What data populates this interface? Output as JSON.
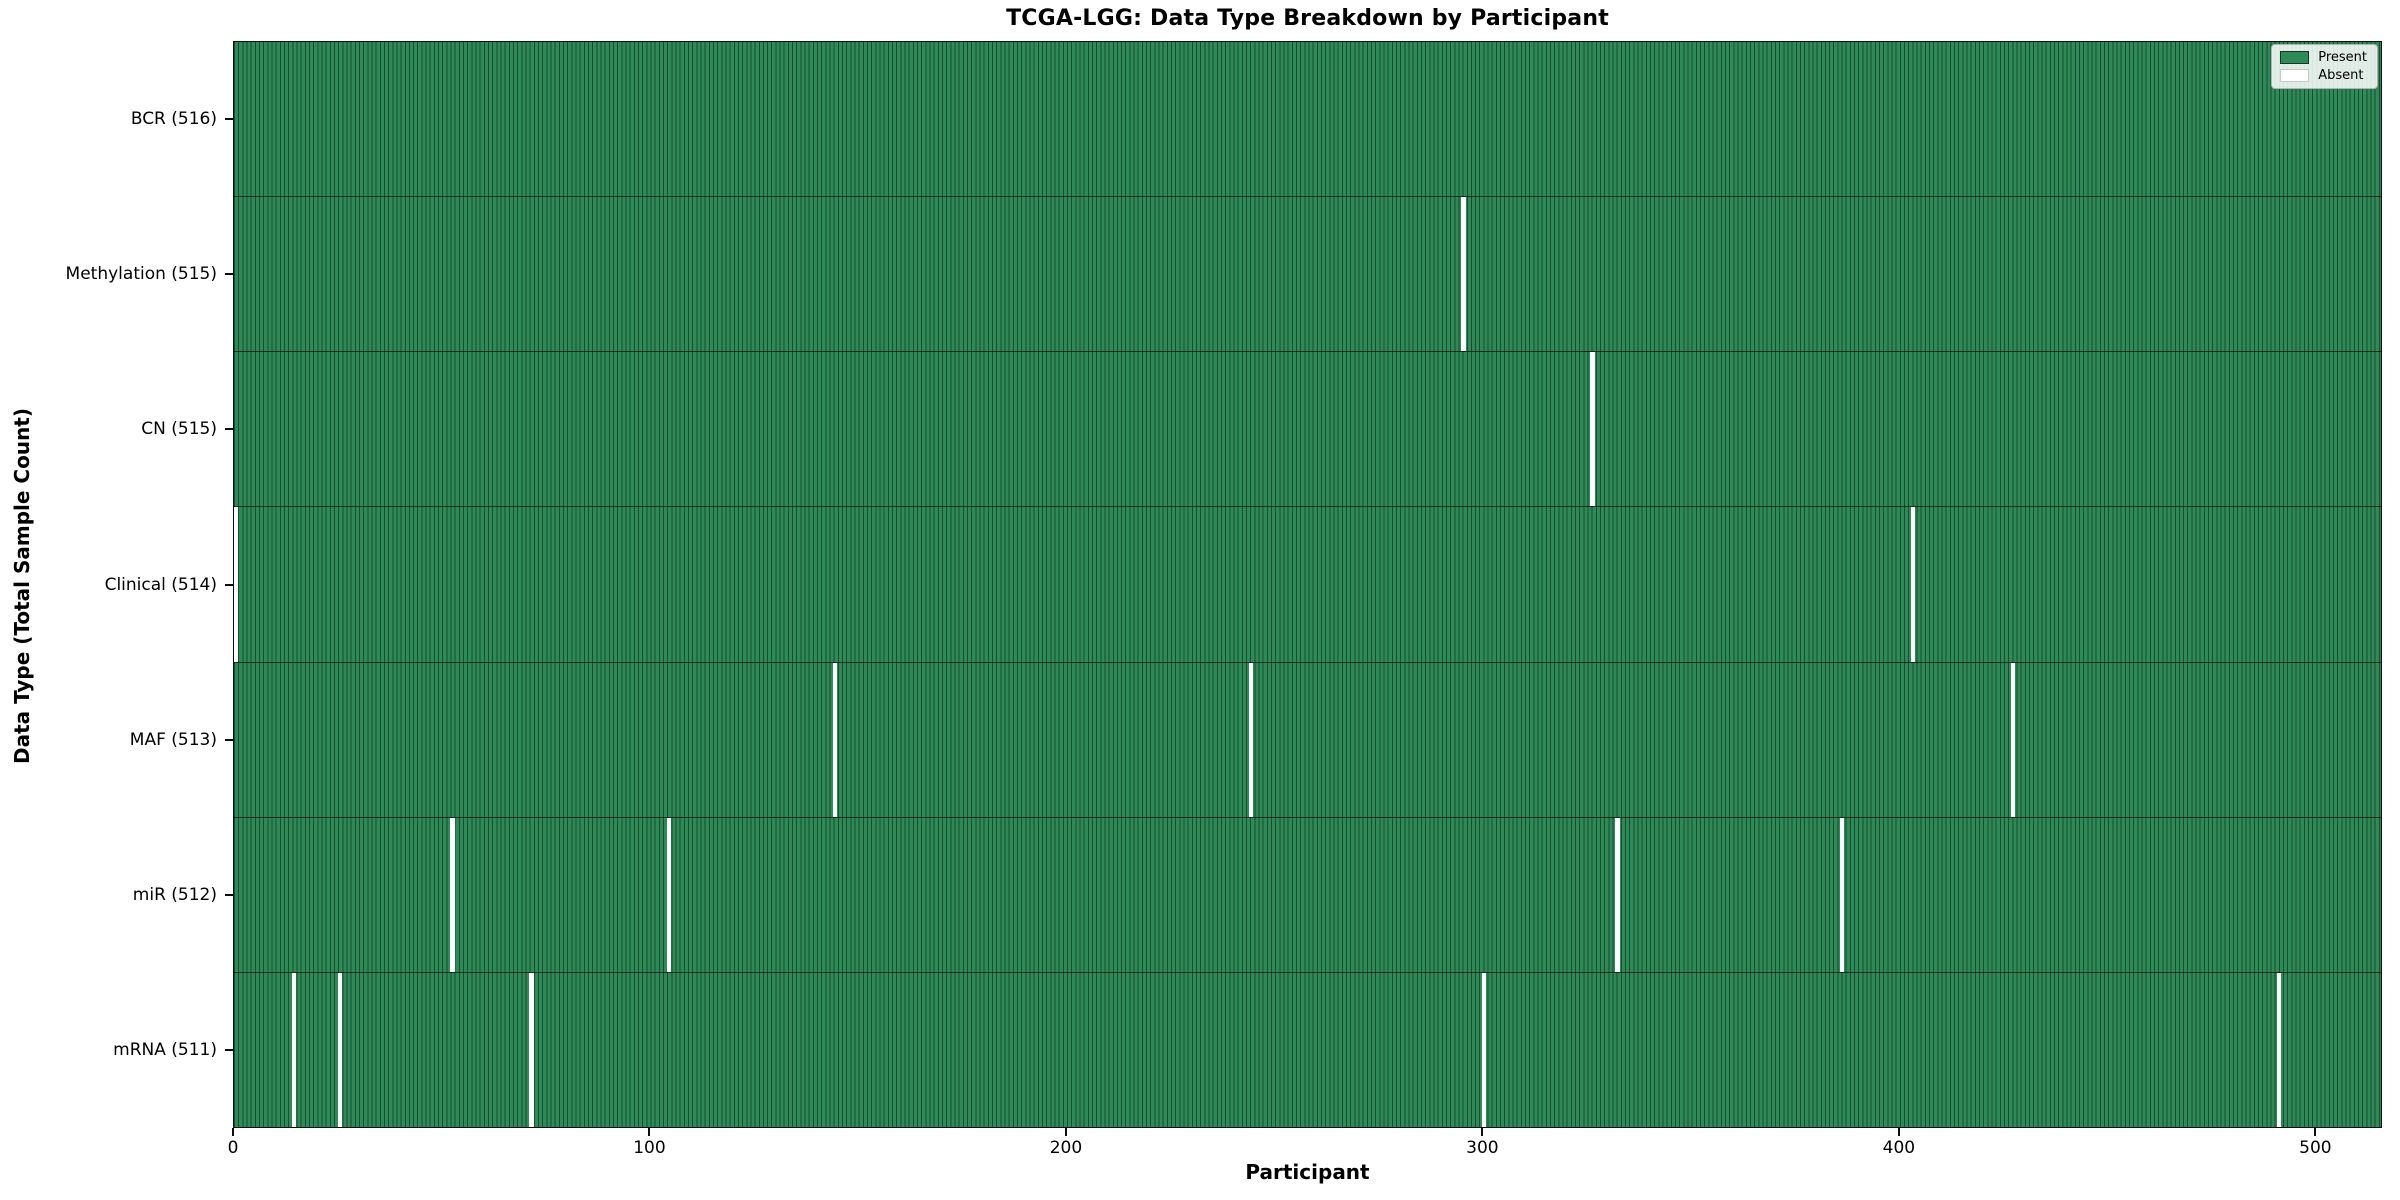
{
  "chart_data": {
    "type": "heatmap",
    "title": "TCGA-LGG: Data Type Breakdown by Participant",
    "xlabel": "Participant",
    "ylabel": "Data Type (Total Sample Count)",
    "x_ticks": [
      0,
      100,
      200,
      300,
      400,
      500
    ],
    "x_range": [
      0,
      516
    ],
    "total_participants": 516,
    "grid": false,
    "legend": {
      "position": "upper-right",
      "present_label": "Present",
      "absent_label": "Absent"
    },
    "colors": {
      "present": "#2e8b57",
      "absent": "#ffffff",
      "background": "#ffffff"
    },
    "rows": [
      {
        "name": "BCR",
        "label": "BCR (516)",
        "total": 516,
        "absent_participants": []
      },
      {
        "name": "Methylation",
        "label": "Methylation (515)",
        "total": 515,
        "absent_participants": [
          295
        ]
      },
      {
        "name": "CN",
        "label": "CN (515)",
        "total": 515,
        "absent_participants": [
          326
        ]
      },
      {
        "name": "Clinical",
        "label": "Clinical (514)",
        "total": 514,
        "absent_participants": [
          0,
          403
        ]
      },
      {
        "name": "MAF",
        "label": "MAF (513)",
        "total": 513,
        "absent_participants": [
          144,
          244,
          427
        ]
      },
      {
        "name": "miR",
        "label": "miR (512)",
        "total": 512,
        "absent_participants": [
          52,
          104,
          332,
          386
        ]
      },
      {
        "name": "mRNA",
        "label": "mRNA (511)",
        "total": 511,
        "absent_participants": [
          14,
          25,
          71,
          300,
          491
        ]
      }
    ]
  }
}
